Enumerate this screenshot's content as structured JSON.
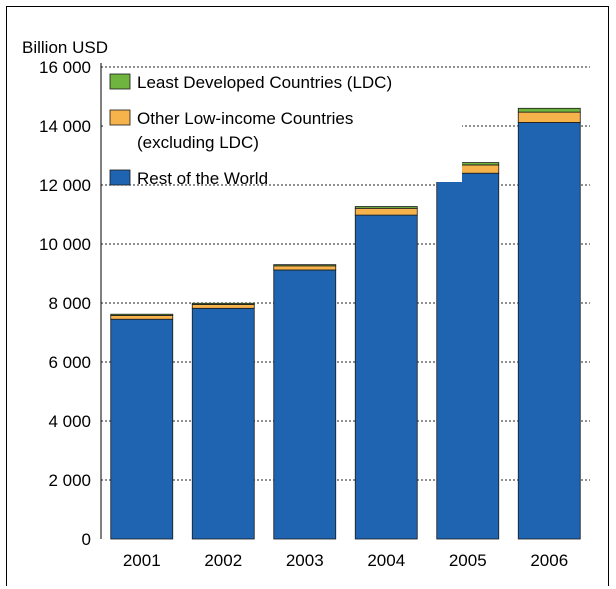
{
  "chart_data": {
    "type": "bar",
    "stacked": true,
    "ylabel": "Billion USD",
    "ylim": [
      0,
      16000
    ],
    "yticks": [
      0,
      2000,
      4000,
      6000,
      8000,
      10000,
      12000,
      14000,
      16000
    ],
    "ytick_labels": [
      "0",
      "2 000",
      "4 000",
      "6 000",
      "8 000",
      "10 000",
      "12 000",
      "14 000",
      "16 000"
    ],
    "grid": "horizontal dotted",
    "legend_placement": "top-left",
    "categories": [
      "2001",
      "2002",
      "2003",
      "2004",
      "2005",
      "2006"
    ],
    "series": [
      {
        "name": "Rest of the World",
        "color": "#1f64b0",
        "values": [
          7450,
          7820,
          9120,
          10980,
          12400,
          14120
        ]
      },
      {
        "name": "Other Low-income Countries",
        "color": "#f6b24b",
        "values": [
          130,
          130,
          140,
          230,
          280,
          350
        ]
      },
      {
        "name": "Least Developed Countries (LDC)",
        "color": "#6fb43f",
        "values": [
          40,
          40,
          40,
          60,
          80,
          130
        ]
      }
    ],
    "legend": [
      {
        "lines": [
          "Least Developed Countries (LDC)"
        ],
        "color": "#6fb43f"
      },
      {
        "lines": [
          "Other Low-income Countries",
          "(excluding LDC)"
        ],
        "color": "#f6b24b"
      },
      {
        "lines": [
          "Rest of the World"
        ],
        "color": "#1f64b0"
      }
    ]
  }
}
